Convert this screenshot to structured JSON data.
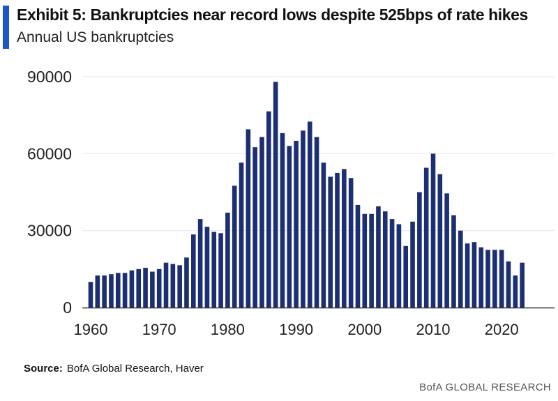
{
  "header": {
    "title": "Exhibit 5: Bankruptcies near record lows despite 525bps of rate hikes",
    "subtitle": "Annual US bankruptcies"
  },
  "footer": {
    "source_label": "Source:",
    "source_text": "BofA Global Research, Haver",
    "brand": "BofA GLOBAL RESEARCH"
  },
  "colors": {
    "bar": "#1c2f73",
    "accent": "#1e56c8",
    "axis": "#333333"
  },
  "chart_data": {
    "type": "bar",
    "x": [
      1960,
      1961,
      1962,
      1963,
      1964,
      1965,
      1966,
      1967,
      1968,
      1969,
      1970,
      1971,
      1972,
      1973,
      1974,
      1975,
      1976,
      1977,
      1978,
      1979,
      1980,
      1981,
      1982,
      1983,
      1984,
      1985,
      1986,
      1987,
      1988,
      1989,
      1990,
      1991,
      1992,
      1993,
      1994,
      1995,
      1996,
      1997,
      1998,
      1999,
      2000,
      2001,
      2002,
      2003,
      2004,
      2005,
      2006,
      2007,
      2008,
      2009,
      2010,
      2011,
      2012,
      2013,
      2014,
      2015,
      2016,
      2017,
      2018,
      2019,
      2020,
      2021,
      2022,
      2023
    ],
    "values": [
      10000,
      12500,
      12500,
      13000,
      13500,
      13500,
      14500,
      15000,
      15500,
      14000,
      15000,
      17500,
      17000,
      16500,
      19500,
      28500,
      34500,
      31500,
      29500,
      29000,
      37000,
      47500,
      56500,
      69500,
      62500,
      66500,
      76500,
      88000,
      68000,
      63000,
      65000,
      69000,
      72500,
      66500,
      56500,
      51000,
      52500,
      54000,
      50500,
      40000,
      36500,
      36500,
      39500,
      37500,
      34500,
      32500,
      24000,
      33500,
      45000,
      54500,
      60000,
      52000,
      44500,
      36000,
      30000,
      25000,
      25500,
      23500,
      22500,
      22500,
      22500,
      18000,
      12500,
      17500
    ],
    "xticks": [
      1960,
      1970,
      1980,
      1990,
      2000,
      2010,
      2020
    ],
    "xtick_labels": [
      "1960",
      "1970",
      "1980",
      "1990",
      "2000",
      "2010",
      "2020"
    ],
    "yticks": [
      0,
      30000,
      60000,
      90000
    ],
    "ytick_labels": [
      "0",
      "30000",
      "60000",
      "90000"
    ],
    "ylim": [
      0,
      90000
    ],
    "xlim": [
      1960,
      2025
    ],
    "xlabel": "",
    "ylabel": "",
    "grid": "horizontal",
    "legend": "none"
  }
}
